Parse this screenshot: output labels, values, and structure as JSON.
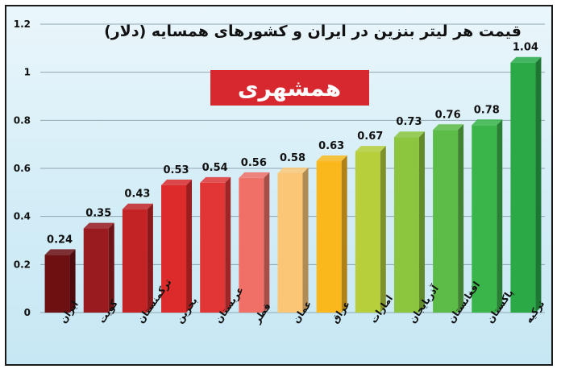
{
  "chart_data": {
    "type": "bar",
    "title": "قیمت هر لیتر بنزین در ایران و کشورهای همسایه (دلار)",
    "xlabel": "",
    "ylabel": "",
    "ylim": [
      0,
      1.2
    ],
    "yticks": [
      "0",
      "0.2",
      "0.4",
      "0.6",
      "0.8",
      "1",
      "1.2"
    ],
    "grid": true,
    "categories": [
      "ایران",
      "کویت",
      "ترکمنستان",
      "بحرین",
      "عربستان",
      "قطر",
      "عمان",
      "عراق",
      "امارات",
      "آذربایجان",
      "افغانستان",
      "پاکستان",
      "ترکیه"
    ],
    "values": [
      0.24,
      0.35,
      0.43,
      0.53,
      0.54,
      0.56,
      0.58,
      0.63,
      0.67,
      0.73,
      0.76,
      0.78,
      1.04
    ],
    "value_labels": [
      "0.24",
      "0.35",
      "0.43",
      "0.53",
      "0.54",
      "0.56",
      "0.58",
      "0.63",
      "0.67",
      "0.73",
      "0.76",
      "0.78",
      "1.04"
    ],
    "colors": [
      "#6e0f12",
      "#9a1b1f",
      "#c42326",
      "#dd2a2a",
      "#e23636",
      "#f07068",
      "#fbc776",
      "#fbb81c",
      "#b6cf3a",
      "#8cc63e",
      "#5dbb47",
      "#3ab54a",
      "#2aa946"
    ]
  },
  "watermark": {
    "text": "همشهری",
    "background_color": "#d7282f",
    "text_color": "#ffffff"
  }
}
